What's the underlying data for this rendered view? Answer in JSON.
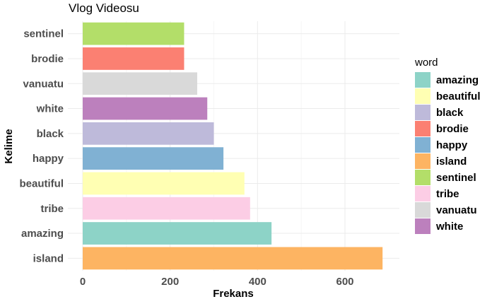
{
  "chart_data": {
    "type": "bar",
    "orientation": "horizontal",
    "title": "Vlog Videosu",
    "xlabel": "Frekans",
    "ylabel": "Kelime",
    "xlim": [
      0,
      700
    ],
    "xticks": [
      0,
      200,
      400,
      600
    ],
    "grid": true,
    "categories": [
      "island",
      "amazing",
      "tribe",
      "beautiful",
      "happy",
      "black",
      "white",
      "vanuatu",
      "brodie",
      "sentinel"
    ],
    "values": [
      686,
      432,
      383,
      370,
      322,
      300,
      285,
      262,
      232,
      232
    ],
    "legend_title": "word",
    "legend_position": "right",
    "legend": [
      {
        "label": "amazing",
        "color": "#8DD3C7"
      },
      {
        "label": "beautiful",
        "color": "#FFFFB3"
      },
      {
        "label": "black",
        "color": "#BEBADA"
      },
      {
        "label": "brodie",
        "color": "#FB8072"
      },
      {
        "label": "happy",
        "color": "#80B1D3"
      },
      {
        "label": "island",
        "color": "#FDB462"
      },
      {
        "label": "sentinel",
        "color": "#B3DE69"
      },
      {
        "label": "tribe",
        "color": "#FCCDE5"
      },
      {
        "label": "vanuatu",
        "color": "#D9D9D9"
      },
      {
        "label": "white",
        "color": "#BC80BD"
      }
    ]
  }
}
